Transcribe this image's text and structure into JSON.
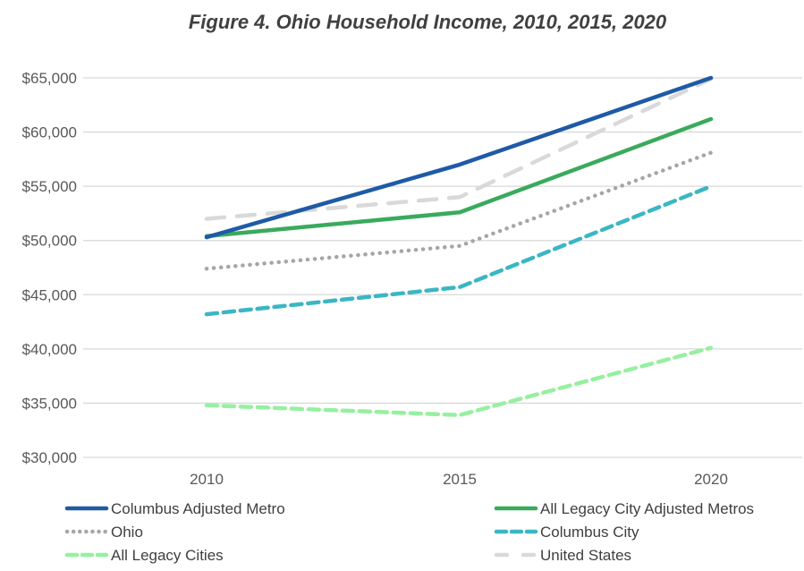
{
  "chart_data": {
    "type": "line",
    "title": "Figure 4. Ohio Household Income, 2010, 2015, 2020",
    "xlabel": "",
    "ylabel": "",
    "categories": [
      "2010",
      "2015",
      "2020"
    ],
    "ylim": [
      30000,
      65000
    ],
    "yticks": [
      30000,
      35000,
      40000,
      45000,
      50000,
      55000,
      60000,
      65000
    ],
    "ytick_labels": [
      "$30,000",
      "$35,000",
      "$40,000",
      "$45,000",
      "$50,000",
      "$55,000",
      "$60,000",
      "$65,000"
    ],
    "grid": true,
    "legend_position": "bottom",
    "series": [
      {
        "name": "Columbus Adjusted Metro",
        "values": [
          50300,
          57000,
          65000
        ],
        "color": "#1f5aa6",
        "style": "solid"
      },
      {
        "name": "All Legacy City Adjusted Metros",
        "values": [
          50400,
          52600,
          61200
        ],
        "color": "#3aaa5c",
        "style": "solid"
      },
      {
        "name": "Ohio",
        "values": [
          47400,
          49500,
          58100
        ],
        "color": "#a6a6a6",
        "style": "dotted"
      },
      {
        "name": "Columbus City",
        "values": [
          43200,
          45700,
          55000
        ],
        "color": "#3bb6c4",
        "style": "dashed"
      },
      {
        "name": "All Legacy Cities",
        "values": [
          34800,
          33900,
          40100
        ],
        "color": "#96f0a0",
        "style": "dashed"
      },
      {
        "name": "United States",
        "values": [
          52000,
          54000,
          64900
        ],
        "color": "#d9d9d9",
        "style": "longdash"
      }
    ]
  }
}
